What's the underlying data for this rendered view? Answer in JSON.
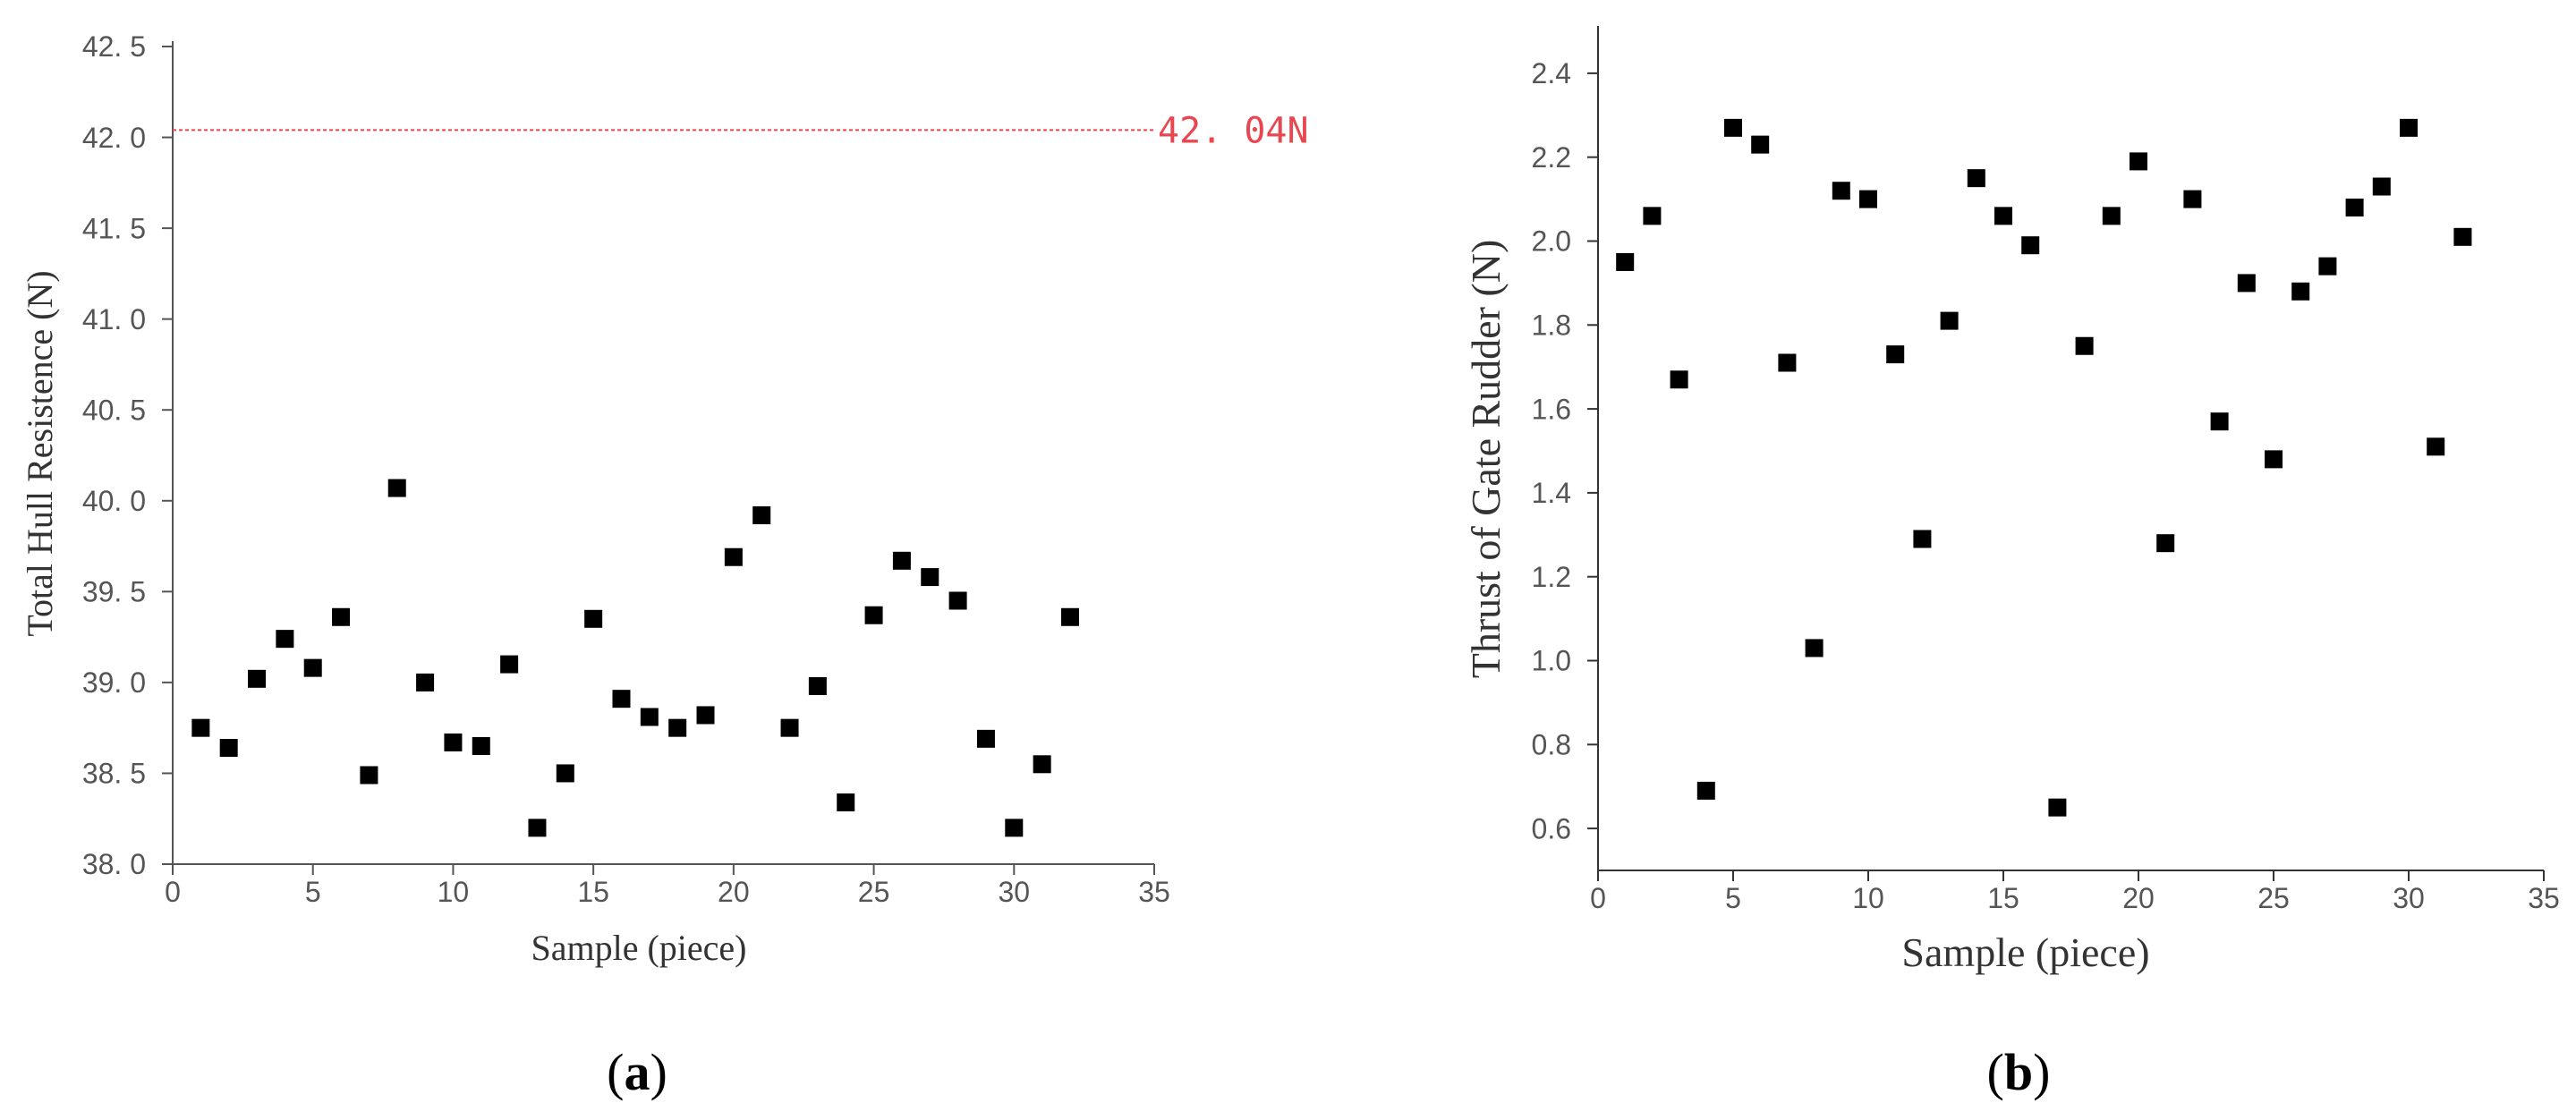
{
  "chart_data": [
    {
      "type": "scatter",
      "panel_label": "a",
      "xlabel": "Sample (piece)",
      "ylabel": "Total Hull Resistence (N)",
      "xlim": [
        0,
        35
      ],
      "ylim": [
        38.0,
        42.5
      ],
      "xticks": [
        0,
        5,
        10,
        15,
        20,
        25,
        30,
        35
      ],
      "yticks": [
        38.0,
        38.5,
        39.0,
        39.5,
        40.0,
        40.5,
        41.0,
        41.5,
        42.0,
        42.5
      ],
      "ytick_labels": [
        "38. 0",
        "38. 5",
        "39. 0",
        "39. 5",
        "40. 0",
        "40. 5",
        "41. 0",
        "41. 5",
        "42. 0",
        "42. 5"
      ],
      "x": [
        1,
        2,
        3,
        4,
        5,
        6,
        7,
        8,
        9,
        10,
        11,
        12,
        13,
        14,
        15,
        16,
        17,
        18,
        19,
        20,
        21,
        22,
        23,
        24,
        25,
        26,
        27,
        28,
        29,
        30,
        31,
        32
      ],
      "y": [
        38.75,
        38.64,
        39.02,
        39.24,
        39.08,
        39.36,
        38.49,
        40.07,
        39.0,
        38.67,
        38.65,
        39.1,
        38.2,
        38.5,
        39.35,
        38.91,
        38.81,
        38.75,
        38.82,
        39.69,
        39.92,
        38.75,
        38.98,
        38.34,
        39.37,
        39.67,
        39.58,
        39.45,
        38.69,
        38.2,
        38.55,
        39.36
      ],
      "reference_line": {
        "y": 42.04,
        "label": "42. 04N",
        "color": "#e8474f"
      },
      "marker": "square",
      "marker_color": "#000000",
      "grid": false
    },
    {
      "type": "scatter",
      "panel_label": "b",
      "xlabel": "Sample (piece)",
      "ylabel": "Thrust of Gate Rudder (N)",
      "xlim": [
        0,
        35
      ],
      "ylim": [
        0.5,
        2.5
      ],
      "xticks": [
        0,
        5,
        10,
        15,
        20,
        25,
        30,
        35
      ],
      "yticks": [
        0.6,
        0.8,
        1.0,
        1.2,
        1.4,
        1.6,
        1.8,
        2.0,
        2.2,
        2.4
      ],
      "ytick_labels": [
        "0.6",
        "0.8",
        "1.0",
        "1.2",
        "1.4",
        "1.6",
        "1.8",
        "2.0",
        "2.2",
        "2.4"
      ],
      "x": [
        1,
        2,
        3,
        4,
        5,
        6,
        7,
        8,
        9,
        10,
        11,
        12,
        13,
        14,
        15,
        16,
        17,
        18,
        19,
        20,
        21,
        22,
        23,
        24,
        25,
        26,
        27,
        28,
        29,
        30,
        31,
        32
      ],
      "y": [
        1.95,
        2.06,
        1.67,
        0.69,
        2.27,
        2.23,
        1.71,
        1.03,
        2.12,
        2.1,
        1.73,
        1.29,
        1.81,
        2.15,
        2.06,
        1.99,
        0.65,
        1.75,
        2.06,
        2.19,
        1.28,
        2.1,
        1.57,
        1.9,
        1.48,
        1.88,
        1.94,
        2.08,
        2.13,
        2.27,
        1.51,
        2.01
      ],
      "marker": "square",
      "marker_color": "#000000",
      "grid": false
    }
  ]
}
